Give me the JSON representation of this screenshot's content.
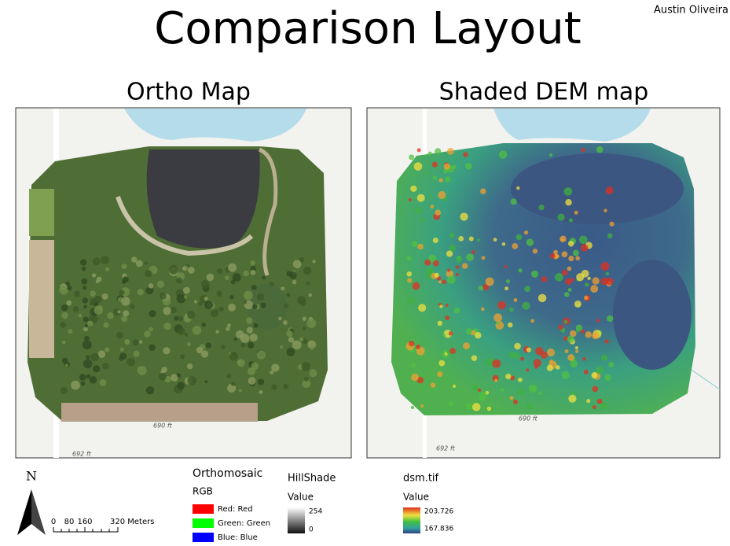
{
  "title": "Comparison Layout",
  "author": "Austin Oliveira",
  "maps": [
    {
      "title": "Ortho Map",
      "labels": [
        "690 ft",
        "692 ft"
      ]
    },
    {
      "title": "Shaded DEM map",
      "labels": [
        "690 ft",
        "692 ft"
      ]
    }
  ],
  "north_arrow": {
    "label": "N"
  },
  "scale_bar": {
    "labels": [
      0,
      80,
      160,
      "320 Meters"
    ]
  },
  "legends": [
    {
      "title": "Orthomosaic",
      "subtitle": "RGB",
      "items": [
        {
          "label": "Red:  Red",
          "color": "#ff0000"
        },
        {
          "label": "Green: Green",
          "color": "#00ff00"
        },
        {
          "label": "Blue:  Blue",
          "color": "#0000ff"
        }
      ]
    },
    {
      "title": "HillShade",
      "subtitle": "Value",
      "max": 254,
      "min": 0
    },
    {
      "title": "dsm.tif",
      "subtitle": "Value",
      "max": 203.726,
      "min": 167.836
    }
  ]
}
